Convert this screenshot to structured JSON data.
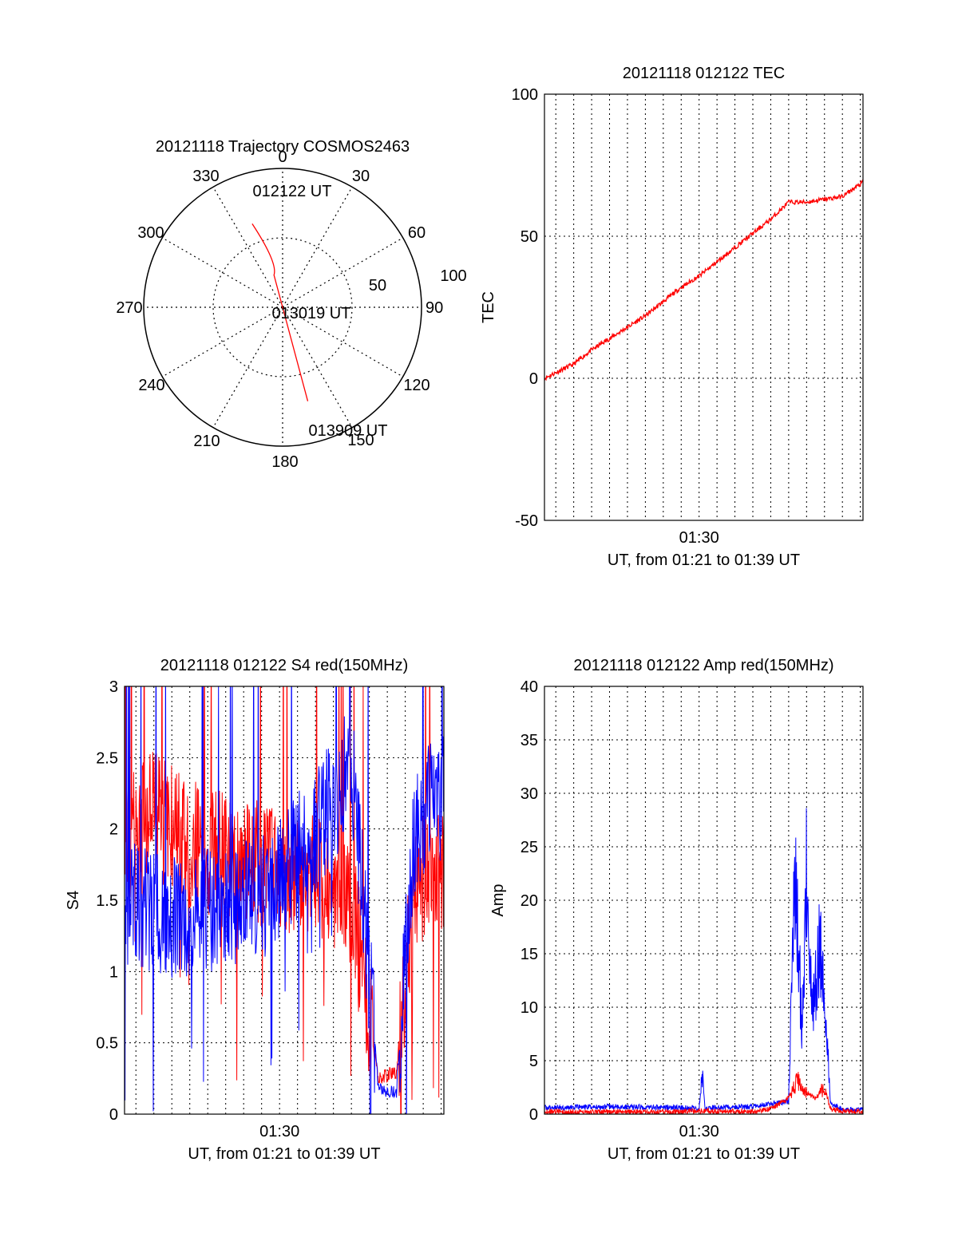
{
  "colors": {
    "red": "#ff0000",
    "blue": "#0000ff",
    "axis": "#000000",
    "grid": "#000000"
  },
  "chart_data": [
    {
      "type": "polar",
      "title": "20121118 Trajectory COSMOS2463",
      "azimuth_labels": [
        "0",
        "30",
        "60",
        "90",
        "120",
        "150",
        "180",
        "210",
        "240",
        "270",
        "300",
        "330"
      ],
      "radial_labels": [
        "50",
        "100"
      ],
      "series": [
        {
          "color": "red",
          "points": [
            [
              340,
              64
            ],
            [
              345,
              24
            ],
            [
              165,
              70
            ]
          ]
        }
      ],
      "annotations": [
        {
          "text": "012122 UT"
        },
        {
          "text": "013019 UT"
        },
        {
          "text": "013909 UT"
        }
      ]
    },
    {
      "type": "line",
      "title": "20121118 012122 TEC",
      "xlabel": "UT, from 01:21 to 01:39 UT",
      "ylabel": "TEC",
      "xlim": [
        "01:21:22",
        "01:39:09"
      ],
      "ylim": [
        -50,
        100
      ],
      "yticks": [
        "-50",
        "0",
        "50",
        "100"
      ],
      "xticks": [
        "01:30"
      ],
      "grid": true,
      "series": [
        {
          "color": "red",
          "x": [
            "01:21:22",
            "01:22:00",
            "01:23:00",
            "01:24:00",
            "01:25:00",
            "01:26:00",
            "01:27:00",
            "01:28:00",
            "01:29:00",
            "01:30:00",
            "01:31:00",
            "01:32:00",
            "01:33:00",
            "01:34:00",
            "01:34:40",
            "01:35:00",
            "01:36:00",
            "01:37:00",
            "01:38:00",
            "01:39:09"
          ],
          "y": [
            0,
            2,
            5,
            10,
            14,
            18,
            22,
            27,
            32,
            36,
            41,
            46,
            51,
            56,
            60,
            62,
            62,
            63,
            64,
            69
          ]
        }
      ]
    },
    {
      "type": "line",
      "title": "20121118 012122 S4 red(150MHz)",
      "xlabel": "UT, from 01:21 to 01:39 UT",
      "ylabel": "S4",
      "xlim": [
        "01:21:22",
        "01:39:09"
      ],
      "ylim": [
        0,
        3
      ],
      "yticks": [
        "0",
        "0.5",
        "1",
        "1.5",
        "2",
        "2.5",
        "3"
      ],
      "xticks": [
        "01:30"
      ],
      "grid": true,
      "series": [
        {
          "color": "red",
          "x": [
            "01:21:22",
            "01:23:00",
            "01:25:00",
            "01:27:00",
            "01:29:00",
            "01:31:00",
            "01:33:00",
            "01:34:00",
            "01:35:30",
            "01:36:30",
            "01:37:30",
            "01:38:30",
            "01:39:09"
          ],
          "y": [
            1.9,
            2.1,
            1.9,
            1.8,
            1.75,
            1.7,
            1.6,
            1.5,
            0.25,
            0.3,
            1.6,
            1.7,
            1.7
          ]
        },
        {
          "color": "blue",
          "x": [
            "01:21:22",
            "01:23:00",
            "01:25:00",
            "01:27:00",
            "01:29:00",
            "01:31:00",
            "01:33:00",
            "01:34:00",
            "01:35:30",
            "01:36:30",
            "01:37:30",
            "01:38:30",
            "01:39:09"
          ],
          "y": [
            1.5,
            1.4,
            1.4,
            1.45,
            1.5,
            1.8,
            2.2,
            2.5,
            0.18,
            0.15,
            2.0,
            2.2,
            2.2
          ]
        }
      ]
    },
    {
      "type": "line",
      "title": "20121118 012122 Amp red(150MHz)",
      "xlabel": "UT, from 01:21 to 01:39 UT",
      "ylabel": "Amp",
      "xlim": [
        "01:21:22",
        "01:39:09"
      ],
      "ylim": [
        0,
        40
      ],
      "yticks": [
        "0",
        "5",
        "10",
        "15",
        "20",
        "25",
        "30",
        "35",
        "40"
      ],
      "xticks": [
        "01:30"
      ],
      "grid": true,
      "series": [
        {
          "color": "blue",
          "x": [
            "01:21:22",
            "01:25:00",
            "01:29:00",
            "01:30:00",
            "01:30:10",
            "01:30:20",
            "01:31:00",
            "01:33:00",
            "01:35:00",
            "01:35:20",
            "01:35:45",
            "01:36:00",
            "01:36:20",
            "01:36:45",
            "01:37:00",
            "01:37:20",
            "01:38:00",
            "01:39:09"
          ],
          "y": [
            0.6,
            0.7,
            0.6,
            0.5,
            3.8,
            0.6,
            0.6,
            0.7,
            1.2,
            23,
            8,
            23,
            9,
            16,
            12,
            1.0,
            0.4,
            0.4
          ]
        },
        {
          "color": "red",
          "x": [
            "01:21:22",
            "01:29:00",
            "01:30:00",
            "01:33:00",
            "01:34:00",
            "01:35:00",
            "01:35:30",
            "01:36:00",
            "01:36:30",
            "01:37:00",
            "01:37:20",
            "01:38:00",
            "01:39:09"
          ],
          "y": [
            0.2,
            0.2,
            0.3,
            0.2,
            0.5,
            1.5,
            3.2,
            2.0,
            1.5,
            2.5,
            0.5,
            0.3,
            0.2
          ]
        }
      ]
    }
  ]
}
